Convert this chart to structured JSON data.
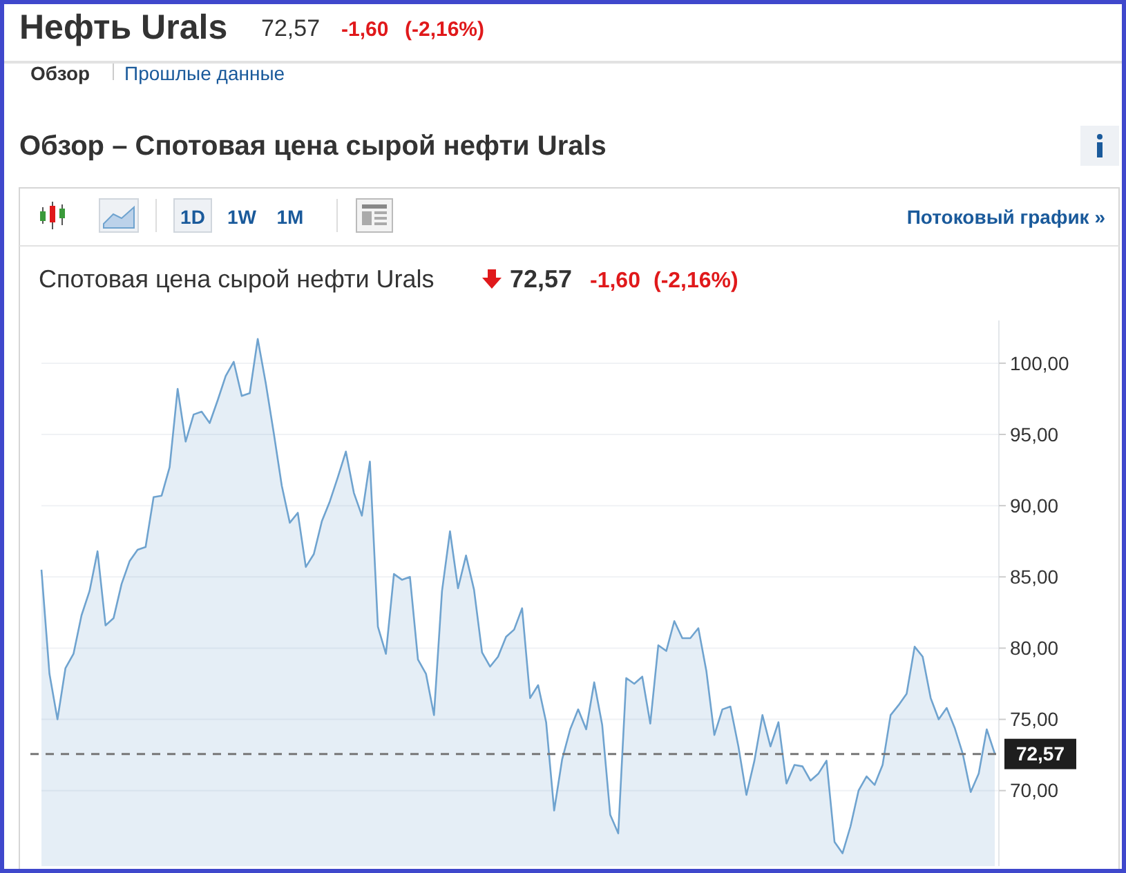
{
  "chart_data": {
    "type": "area",
    "title": "Обзор – Спотовая цена сырой нефти Urals",
    "subtitle": "Спотовая цена сырой нефти Urals",
    "annotations": [
      "Нефть Urals",
      "72,57",
      "-1,60",
      "(-2,16%)",
      "Обзор",
      "Прошлые данные",
      "1D",
      "1W",
      "1M",
      "Потоковый график »",
      "72,57",
      "-1,60",
      "(-2,16%)"
    ],
    "categories": [
      null,
      null,
      null,
      null,
      null,
      null,
      null,
      null,
      null,
      null,
      null,
      null,
      null,
      null,
      null,
      null,
      null,
      null,
      null,
      null,
      null,
      null,
      null,
      null,
      null,
      null,
      null,
      null,
      null,
      null,
      null,
      null,
      null,
      null,
      null,
      null,
      null,
      null,
      null,
      null,
      null,
      null,
      null,
      null,
      null,
      null,
      null,
      null,
      null,
      null,
      null,
      null,
      null,
      null,
      null,
      null,
      null,
      null,
      null,
      null,
      null,
      null,
      null,
      null,
      null,
      null,
      null,
      null,
      null,
      null,
      null,
      null,
      null,
      null,
      null,
      null,
      null,
      null,
      null,
      null,
      null,
      null,
      null,
      null,
      null,
      null,
      null,
      null,
      null,
      null,
      null,
      null,
      null,
      null,
      null,
      null,
      null,
      null,
      null,
      null,
      null,
      null,
      null,
      null,
      null,
      null,
      null,
      null,
      null,
      null,
      null,
      null,
      null,
      null,
      null,
      null,
      null,
      null,
      null,
      null
    ],
    "series": [
      {
        "color": "#6fa3cf",
        "values": [
          85.5,
          78.2,
          75.0,
          78.6,
          79.6,
          82.3,
          84.0,
          86.8,
          81.6,
          82.1,
          84.5,
          86.1,
          86.9,
          87.1,
          90.6,
          90.7,
          92.7,
          98.2,
          94.5,
          96.4,
          96.6,
          95.8,
          97.4,
          99.1,
          100.1,
          97.7,
          97.9,
          101.7,
          98.6,
          95.1,
          91.4,
          88.8,
          89.5,
          85.7,
          86.6,
          88.9,
          90.3,
          92.0,
          93.8,
          90.9,
          89.3,
          93.1,
          81.5,
          79.6,
          85.2,
          84.8,
          85.0,
          79.2,
          78.2,
          75.3,
          84.0,
          88.2,
          84.2,
          86.5,
          84.1,
          79.7,
          78.7,
          79.4,
          80.8,
          81.3,
          82.8,
          76.5,
          77.4,
          74.8,
          68.6,
          72.2,
          74.3,
          75.7,
          74.3,
          77.6,
          74.6,
          68.3,
          67.0,
          77.9,
          77.5,
          78.0,
          74.7,
          80.2,
          79.8,
          81.9,
          80.7,
          80.7,
          81.4,
          78.4,
          73.9,
          75.7,
          75.9,
          73.1,
          69.7,
          72.1,
          75.3,
          73.1,
          74.8,
          70.5,
          71.8,
          71.7,
          70.7,
          71.2,
          72.1,
          66.4,
          65.6,
          67.5,
          70.0,
          71.0,
          70.4,
          71.8,
          75.3,
          76.0,
          76.8,
          80.1,
          79.4,
          76.5,
          75.0,
          75.8,
          74.4,
          72.6,
          69.9,
          71.2,
          74.3,
          72.6
        ]
      }
    ],
    "ylim": [
      64.7,
      103
    ],
    "yticks": [
      {
        "value": 70,
        "label": "70,00"
      },
      {
        "value": 75,
        "label": "75,00"
      },
      {
        "value": 80,
        "label": "80,00"
      },
      {
        "value": 85,
        "label": "85,00"
      },
      {
        "value": 90,
        "label": "90,00"
      },
      {
        "value": 95,
        "label": "95,00"
      },
      {
        "value": 100,
        "label": "100,00"
      }
    ],
    "grid": "y",
    "ref_lines": [
      {
        "axis": "y",
        "value": 72.57,
        "label": "72,57",
        "color": "#777777",
        "line_style": "dashed"
      }
    ]
  }
}
